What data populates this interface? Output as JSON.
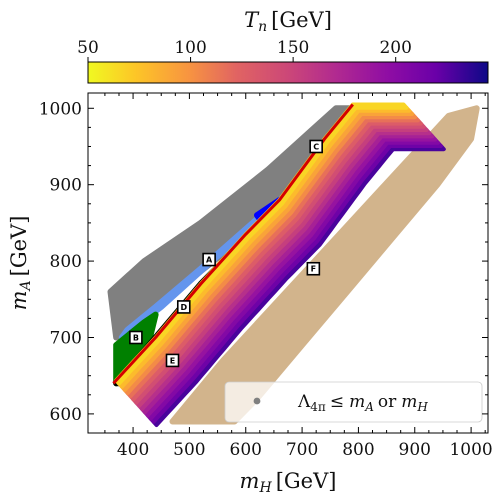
{
  "chart_data": {
    "type": "scatter",
    "xlabel": "m_H [GeV]",
    "ylabel": "m_A [GeV]",
    "xlim": [
      320,
      1030
    ],
    "ylim": [
      575,
      1020
    ],
    "xticks": [
      400,
      500,
      600,
      700,
      800,
      900,
      1000
    ],
    "yticks": [
      600,
      700,
      800,
      900,
      1000
    ],
    "grid": false,
    "colorbar": {
      "label": "T_n [GeV]",
      "range": [
        50,
        245
      ],
      "ticks": [
        50,
        100,
        150,
        200
      ],
      "position": "top",
      "colormap": "plasma_r"
    },
    "regions": [
      {
        "id": "grey",
        "color": "#808080",
        "polygon": [
          [
            360,
            760
          ],
          [
            420,
            800
          ],
          [
            520,
            850
          ],
          [
            640,
            920
          ],
          [
            700,
            960
          ],
          [
            760,
            1000
          ],
          [
            850,
            1000
          ],
          [
            790,
            960
          ],
          [
            720,
            920
          ],
          [
            640,
            860
          ],
          [
            560,
            810
          ],
          [
            500,
            775
          ],
          [
            440,
            740
          ],
          [
            400,
            710
          ],
          [
            370,
            700
          ]
        ]
      },
      {
        "id": "lightblue",
        "color": "#6495ed",
        "polygon": [
          [
            380,
            700
          ],
          [
            450,
            740
          ],
          [
            540,
            800
          ],
          [
            620,
            850
          ],
          [
            700,
            900
          ],
          [
            780,
            960
          ],
          [
            840,
            1000
          ],
          [
            780,
            960
          ],
          [
            700,
            905
          ],
          [
            620,
            855
          ],
          [
            520,
            790
          ],
          [
            440,
            740
          ],
          [
            390,
            710
          ]
        ]
      },
      {
        "id": "green",
        "color": "#008000",
        "polygon": [
          [
            370,
            640
          ],
          [
            370,
            690
          ],
          [
            420,
            720
          ],
          [
            440,
            730
          ],
          [
            430,
            700
          ],
          [
            400,
            670
          ]
        ]
      },
      {
        "id": "blue",
        "color": "#0000ff",
        "polygon": [
          [
            620,
            860
          ],
          [
            700,
            900
          ],
          [
            780,
            960
          ],
          [
            840,
            1000
          ],
          [
            860,
            1000
          ],
          [
            790,
            960
          ],
          [
            700,
            880
          ],
          [
            640,
            840
          ]
        ]
      },
      {
        "id": "black",
        "color": "#000000",
        "polygon": [
          [
            370,
            640
          ],
          [
            440,
            700
          ],
          [
            520,
            770
          ],
          [
            600,
            830
          ],
          [
            660,
            870
          ],
          [
            680,
            880
          ],
          [
            640,
            840
          ],
          [
            580,
            790
          ],
          [
            500,
            730
          ],
          [
            420,
            660
          ],
          [
            380,
            640
          ]
        ]
      },
      {
        "id": "tan",
        "color": "#d2b48c",
        "polygon": [
          [
            470,
            590
          ],
          [
            560,
            670
          ],
          [
            660,
            750
          ],
          [
            760,
            830
          ],
          [
            860,
            910
          ],
          [
            960,
            990
          ],
          [
            1010,
            1000
          ],
          [
            1000,
            960
          ],
          [
            940,
            900
          ],
          [
            860,
            830
          ],
          [
            780,
            760
          ],
          [
            700,
            690
          ],
          [
            620,
            620
          ],
          [
            580,
            590
          ]
        ]
      }
    ],
    "thermal_band": {
      "x_range": [
        370,
        880
      ],
      "y_offset_from_edge": [
        0,
        130
      ],
      "tn_near_edge": 60,
      "tn_far_edge": 235
    },
    "boundary_line": {
      "color": "#d40000",
      "points": [
        [
          365,
          640
        ],
        [
          440,
          700
        ],
        [
          520,
          770
        ],
        [
          600,
          835
        ],
        [
          660,
          880
        ],
        [
          740,
          960
        ],
        [
          790,
          1005
        ]
      ]
    },
    "annotations": [
      {
        "label": "A",
        "x": 535,
        "y": 802
      },
      {
        "label": "B",
        "x": 405,
        "y": 700
      },
      {
        "label": "C",
        "x": 725,
        "y": 950
      },
      {
        "label": "D",
        "x": 490,
        "y": 740
      },
      {
        "label": "E",
        "x": 470,
        "y": 670
      },
      {
        "label": "F",
        "x": 720,
        "y": 790
      }
    ],
    "legend": {
      "position": "bottom-right",
      "entries": [
        {
          "marker": "gray-dot",
          "text": "Λ_{4π} ≤ m_A or m_H"
        }
      ]
    }
  },
  "labels": {
    "colorbar_title": "T",
    "colorbar_title_sub": "n",
    "colorbar_title_unit": "[GeV]",
    "xlabel_var": "m",
    "xlabel_sub": "H",
    "xlabel_unit": "[GeV]",
    "ylabel_var": "m",
    "ylabel_sub": "A",
    "ylabel_unit": "[GeV]",
    "legend_lambda": "Λ",
    "legend_lambda_sub": "4π",
    "legend_rest": "≤",
    "legend_ma": "m",
    "legend_ma_sub": "A",
    "legend_or": "or",
    "legend_mh": "m",
    "legend_mh_sub": "H"
  }
}
